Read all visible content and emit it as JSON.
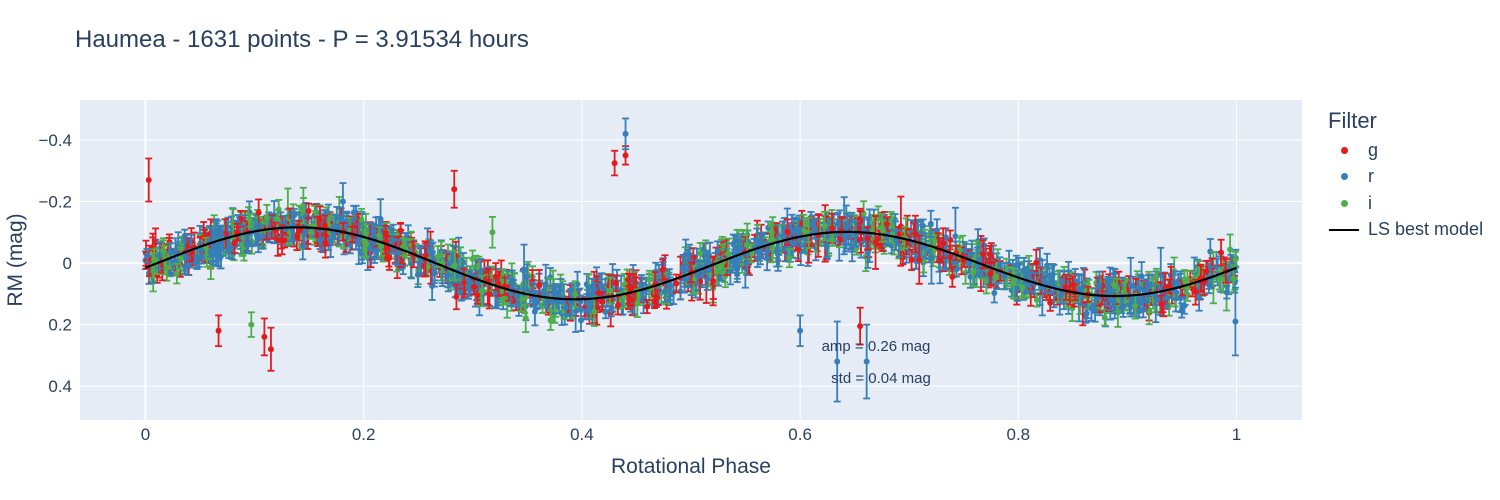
{
  "chart_data": {
    "type": "scatter",
    "title": "Haumea - 1631 points - P = 3.91534 hours",
    "xlabel": "Rotational Phase",
    "ylabel": "RM (mag)",
    "xlim": [
      -0.06,
      1.06
    ],
    "ylim": [
      0.51,
      -0.53
    ],
    "y_reversed": true,
    "x_ticks": [
      0,
      0.2,
      0.4,
      0.6,
      0.8,
      1
    ],
    "x_tick_labels": [
      "0",
      "0.2",
      "0.4",
      "0.6",
      "0.8",
      "1"
    ],
    "y_ticks": [
      -0.4,
      -0.2,
      0,
      0.2,
      0.4
    ],
    "y_tick_labels": [
      "−0.4",
      "−0.2",
      "0",
      "0.2",
      "0.4"
    ],
    "grid": true,
    "legend_title": "Filter",
    "legend_position": "right",
    "series": [
      {
        "name": "g",
        "color": "#e41a1c",
        "n_points": 420,
        "outliers": [
          [
            0.003,
            -0.27,
            0.07
          ],
          [
            0.109,
            0.24,
            0.06
          ],
          [
            0.115,
            0.28,
            0.07
          ],
          [
            0.283,
            -0.24,
            0.06
          ],
          [
            0.285,
            0.11,
            0.04
          ],
          [
            0.43,
            -0.325,
            0.04
          ],
          [
            0.44,
            -0.35,
            0.03
          ],
          [
            0.655,
            0.205,
            0.06
          ],
          [
            0.067,
            0.22,
            0.05
          ]
        ]
      },
      {
        "name": "r",
        "color": "#377eb8",
        "n_points": 790,
        "outliers": [
          [
            0.181,
            -0.2,
            0.06
          ],
          [
            0.44,
            -0.42,
            0.05
          ],
          [
            0.347,
            0.02,
            0.08
          ],
          [
            0.6,
            0.22,
            0.05
          ],
          [
            0.634,
            0.32,
            0.13
          ],
          [
            0.661,
            0.32,
            0.12
          ],
          [
            0.822,
            0.08,
            0.09
          ],
          [
            0.999,
            0.19,
            0.11
          ],
          [
            0.065,
            -0.04,
            0.05
          ]
        ]
      },
      {
        "name": "i",
        "color": "#4daf4a",
        "n_points": 421,
        "outliers": [
          [
            0.097,
            0.2,
            0.04
          ],
          [
            0.202,
            -0.06,
            0.04
          ],
          [
            0.318,
            -0.1,
            0.05
          ]
        ]
      }
    ],
    "model": {
      "name": "LS best model",
      "color": "#000000",
      "mean": 0.0018,
      "a1": -0.0088,
      "b1": -0.0024,
      "a2": 0.0222,
      "b2": -0.1083
    },
    "annotations": [
      "amp = 0.26 mag",
      "std = 0.04 mag"
    ]
  }
}
